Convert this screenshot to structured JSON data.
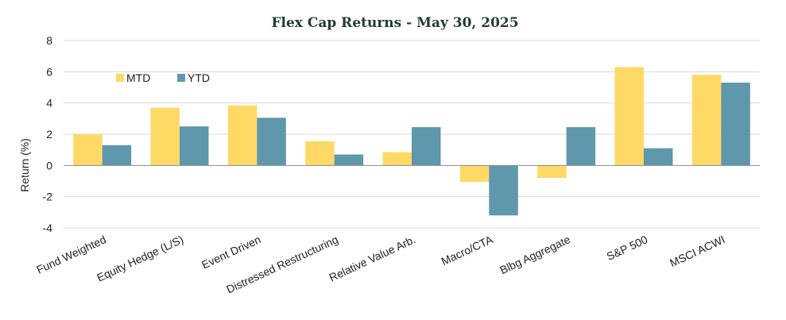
{
  "chart_data": {
    "type": "bar",
    "title": "Flex Cap Returns - May 30, 2025",
    "ylabel": "Return (%)",
    "xlabel": "",
    "ylim": [
      -4,
      8
    ],
    "yticks": [
      "8",
      "6",
      "4",
      "2",
      "0",
      "-2",
      "-4"
    ],
    "grid": true,
    "legend_position": "top-left",
    "categories": [
      "Fund Weighted",
      "Equity Hedge (L/S)",
      "Event Driven",
      "Distressed Restructuring",
      "Relative Value Arb.",
      "Macro/CTA",
      "Blbg Aggregate",
      "S&P 500",
      "MSCI ACWI"
    ],
    "series": [
      {
        "name": "MTD",
        "color": "#ffd966",
        "values": [
          2.0,
          3.7,
          3.85,
          1.55,
          0.85,
          -1.05,
          -0.8,
          6.3,
          5.8
        ]
      },
      {
        "name": "YTD",
        "color": "#5f97ac",
        "values": [
          1.3,
          2.5,
          3.05,
          0.7,
          2.45,
          -3.2,
          2.45,
          1.1,
          5.3
        ]
      }
    ]
  }
}
